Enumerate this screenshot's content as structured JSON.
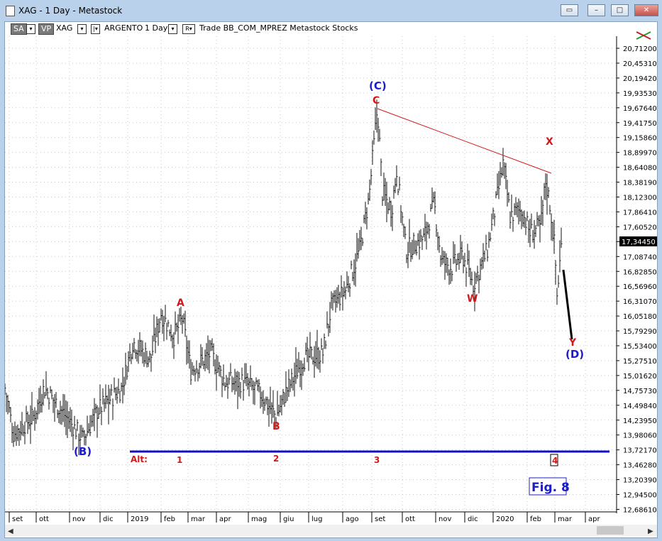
{
  "window": {
    "title": "XAG - 1 Day - Metastock"
  },
  "toolbar": {
    "sa": "SA",
    "vp": "VP",
    "symbol": "XAG",
    "security_name": "ARGENTO",
    "period": "1 Day",
    "rest": "Trade  BB_COM_MPREZ  Metastock  Stocks"
  },
  "colors": {
    "bars": "#111111",
    "wave_red": "#d21919",
    "wave_blue": "#1d1dc8",
    "baseline": "#1010c0"
  },
  "price_axis": {
    "labels": [
      "20,71200",
      "20,45310",
      "20,19420",
      "19,93530",
      "19,67640",
      "19,41750",
      "19,15860",
      "18,89970",
      "18,64080",
      "18,38190",
      "18,12300",
      "17,86410",
      "17,60520",
      "17,34450",
      "17,08740",
      "16,82850",
      "16,56960",
      "16,31070",
      "16,05180",
      "15,79290",
      "15,53400",
      "15,27510",
      "15,01620",
      "14,75730",
      "14,49840",
      "14,23950",
      "13,98060",
      "13,72170",
      "13,46280",
      "13,20390",
      "12,94500",
      "12,68610"
    ],
    "current": "17,34450"
  },
  "time_axis": [
    "set",
    "ott",
    "nov",
    "dic",
    "2019",
    "feb",
    "mar",
    "apr",
    "mag",
    "giu",
    "lug",
    "ago",
    "set",
    "ott",
    "nov",
    "dic",
    "2020",
    "feb",
    "mar",
    "apr"
  ],
  "annotations": {
    "wave_C_paren": "(C)",
    "wave_C": "C",
    "wave_X": "X",
    "wave_A": "A",
    "wave_W": "W",
    "wave_Y": "Y",
    "wave_D_paren": "(D)",
    "wave_B_paren": "(B)",
    "wave_B": "B",
    "alt": "Alt:",
    "n1": "1",
    "n2": "2",
    "n3": "3",
    "n4": "4",
    "fig": "Fig. 8"
  },
  "chart_data": {
    "type": "ohlc",
    "description_series": "XAG daily price",
    "x": [
      "2018-09",
      "2018-10",
      "2018-11",
      "2018-12",
      "2019-01",
      "2019-02",
      "2019-03",
      "2019-04",
      "2019-05",
      "2019-06",
      "2019-07",
      "2019-08",
      "2019-09",
      "2019-10",
      "2019-11",
      "2019-12",
      "2020-01",
      "2020-02",
      "2020-03"
    ],
    "path_close": [
      14.3,
      14.5,
      14.1,
      14.6,
      15.3,
      15.7,
      15.2,
      15.1,
      14.6,
      14.9,
      15.3,
      16.8,
      18.2,
      17.5,
      17.2,
      17.0,
      17.9,
      17.6,
      17.5
    ],
    "ylim": [
      12.6861,
      20.712
    ]
  }
}
